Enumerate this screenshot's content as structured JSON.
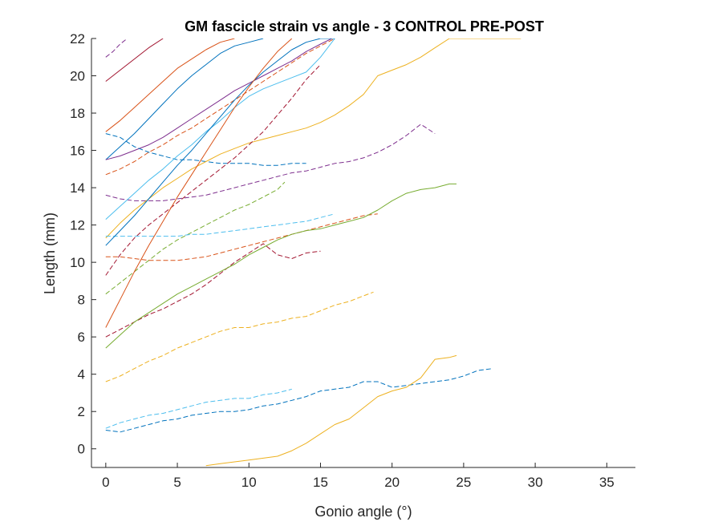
{
  "chart_data": {
    "type": "line",
    "title": "GM fascicle strain vs angle - 3 CONTROL PRE-POST",
    "xlabel": "Gonio angle (°)",
    "ylabel": "Length (mm)",
    "xlim": [
      -1,
      37
    ],
    "ylim": [
      -1,
      22
    ],
    "xticks": [
      0,
      5,
      10,
      15,
      20,
      25,
      30,
      35
    ],
    "yticks": [
      0,
      2,
      4,
      6,
      8,
      10,
      12,
      14,
      16,
      18,
      20,
      22
    ],
    "grid": false,
    "legend": "none",
    "colors": {
      "blue": "#0072BD",
      "orange": "#D95319",
      "yellow": "#EDB120",
      "purple": "#7E2F8E",
      "green": "#77AC30",
      "cyan": "#4DBEEE",
      "maroon": "#A2142F",
      "axis": "#262626"
    },
    "series": [
      {
        "color": "purple",
        "dash": "dash",
        "x": [
          0,
          0.5,
          1,
          1.5
        ],
        "y": [
          21,
          21.3,
          21.7,
          22
        ]
      },
      {
        "color": "maroon",
        "dash": "solid",
        "x": [
          0,
          1,
          2,
          3,
          4
        ],
        "y": [
          19.7,
          20.3,
          20.9,
          21.5,
          22
        ]
      },
      {
        "color": "orange",
        "dash": "solid",
        "x": [
          0,
          1,
          2,
          3,
          4,
          5,
          6,
          7,
          8,
          9
        ],
        "y": [
          17,
          17.6,
          18.3,
          19,
          19.7,
          20.4,
          20.9,
          21.4,
          21.8,
          22
        ]
      },
      {
        "color": "blue",
        "dash": "solid",
        "x": [
          0,
          1,
          2,
          3,
          4,
          5,
          6,
          7,
          8,
          9,
          10,
          11
        ],
        "y": [
          15.5,
          16.2,
          16.9,
          17.7,
          18.5,
          19.3,
          20,
          20.6,
          21.2,
          21.6,
          21.8,
          22
        ]
      },
      {
        "color": "purple",
        "dash": "solid",
        "x": [
          0,
          1,
          2,
          3,
          4,
          5,
          6,
          7,
          8,
          9,
          10,
          11,
          12,
          13,
          14,
          15,
          15.8
        ],
        "y": [
          15.5,
          15.7,
          16,
          16.3,
          16.7,
          17.2,
          17.7,
          18.2,
          18.7,
          19.2,
          19.6,
          20,
          20.4,
          20.8,
          21.3,
          21.7,
          22
        ]
      },
      {
        "color": "blue",
        "dash": "dash",
        "x": [
          0,
          1,
          2,
          3,
          4,
          5,
          6,
          7,
          8,
          9,
          10,
          11,
          12,
          13,
          14
        ],
        "y": [
          16.9,
          16.7,
          16.2,
          15.9,
          15.7,
          15.5,
          15.5,
          15.4,
          15.3,
          15.3,
          15.3,
          15.2,
          15.2,
          15.3,
          15.3
        ]
      },
      {
        "color": "orange",
        "dash": "dash",
        "x": [
          0,
          1,
          2,
          3,
          4,
          5,
          6,
          7,
          8,
          9,
          10,
          11,
          12,
          13,
          14,
          15,
          16
        ],
        "y": [
          14.7,
          15,
          15.4,
          15.9,
          16.3,
          16.8,
          17.2,
          17.7,
          18.2,
          18.7,
          19.2,
          19.7,
          20.2,
          20.7,
          21.2,
          21.6,
          22
        ]
      },
      {
        "color": "purple",
        "dash": "dash",
        "x": [
          0,
          1,
          2,
          3,
          4,
          5,
          6,
          7,
          8,
          9,
          10,
          11,
          12,
          13,
          14,
          15,
          16,
          17,
          18,
          19,
          20,
          21,
          22,
          23
        ],
        "y": [
          13.6,
          13.4,
          13.3,
          13.3,
          13.3,
          13.4,
          13.5,
          13.6,
          13.8,
          14,
          14.2,
          14.4,
          14.6,
          14.8,
          14.9,
          15.1,
          15.3,
          15.4,
          15.6,
          15.9,
          16.3,
          16.8,
          17.4,
          16.9
        ]
      },
      {
        "color": "yellow",
        "dash": "solid",
        "x": [
          0,
          1,
          2,
          3,
          4,
          5,
          6,
          7,
          8,
          9,
          10,
          11,
          12,
          13,
          14,
          15,
          16,
          17,
          18,
          19,
          20,
          21,
          22,
          23,
          24,
          25,
          26,
          27,
          28,
          29
        ],
        "y": [
          11.3,
          12.1,
          12.8,
          13.4,
          14,
          14.5,
          15,
          15.4,
          15.8,
          16.1,
          16.4,
          16.6,
          16.8,
          17,
          17.2,
          17.5,
          17.9,
          18.4,
          19,
          20,
          20.3,
          20.6,
          21,
          21.5,
          22,
          22,
          22,
          22,
          22,
          22
        ]
      },
      {
        "color": "cyan",
        "dash": "solid",
        "x": [
          0,
          1,
          2,
          3,
          4,
          5,
          6,
          7,
          8,
          9,
          10,
          11,
          12,
          13,
          14,
          15,
          16
        ],
        "y": [
          12.3,
          13,
          13.7,
          14.4,
          15,
          15.7,
          16.3,
          17,
          17.6,
          18.3,
          18.9,
          19.3,
          19.6,
          19.9,
          20.2,
          21,
          22
        ]
      },
      {
        "color": "maroon",
        "dash": "dash",
        "x": [
          0,
          1,
          2,
          3,
          4,
          5,
          6,
          7,
          8,
          9,
          10,
          11,
          12,
          13,
          14,
          15
        ],
        "y": [
          9.3,
          10.4,
          11.3,
          12,
          12.6,
          13.2,
          13.8,
          14.4,
          15,
          15.6,
          16.3,
          17,
          17.9,
          18.8,
          19.8,
          20.6
        ]
      },
      {
        "color": "green",
        "dash": "dash",
        "x": [
          0,
          1,
          2,
          3,
          4,
          5,
          6,
          7,
          8,
          9,
          10,
          11,
          12,
          12.5
        ],
        "y": [
          8.3,
          8.9,
          9.5,
          10.1,
          10.7,
          11.2,
          11.6,
          12,
          12.4,
          12.8,
          13.1,
          13.5,
          13.9,
          14.3
        ]
      },
      {
        "color": "cyan",
        "dash": "dash",
        "x": [
          0,
          1,
          2,
          3,
          4,
          5,
          6,
          7,
          8,
          9,
          10,
          11,
          12,
          13,
          14,
          15,
          16
        ],
        "y": [
          11.4,
          11.4,
          11.4,
          11.4,
          11.4,
          11.4,
          11.5,
          11.5,
          11.6,
          11.7,
          11.8,
          11.9,
          12,
          12.1,
          12.2,
          12.4,
          12.6
        ]
      },
      {
        "color": "orange",
        "dash": "dash",
        "x": [
          0,
          1,
          2,
          3,
          4,
          5,
          6,
          7,
          8,
          9,
          10,
          11,
          12,
          13,
          14,
          15,
          16,
          17,
          18,
          19
        ],
        "y": [
          10.3,
          10.3,
          10.2,
          10.1,
          10.1,
          10.1,
          10.2,
          10.3,
          10.5,
          10.7,
          10.9,
          11.1,
          11.3,
          11.5,
          11.7,
          11.9,
          12.1,
          12.3,
          12.5,
          12.6
        ]
      },
      {
        "color": "blue",
        "dash": "solid",
        "x": [
          0,
          1,
          2,
          3,
          4,
          5,
          6,
          7,
          8,
          9,
          10,
          11,
          12,
          13,
          14,
          15,
          16
        ],
        "y": [
          10.9,
          11.7,
          12.5,
          13.4,
          14.3,
          15.2,
          16,
          16.9,
          17.8,
          18.7,
          19.5,
          20.2,
          20.8,
          21.4,
          21.8,
          22,
          22
        ]
      },
      {
        "color": "orange",
        "dash": "solid",
        "x": [
          0,
          1,
          2,
          3,
          4,
          5,
          6,
          7,
          8,
          9,
          10,
          11,
          12,
          13
        ],
        "y": [
          6.5,
          8,
          9.5,
          10.9,
          12.2,
          13.5,
          14.7,
          15.9,
          17.1,
          18.3,
          19.4,
          20.4,
          21.3,
          22
        ]
      },
      {
        "color": "maroon",
        "dash": "dash",
        "x": [
          0,
          1,
          2,
          3,
          4,
          5,
          6,
          7,
          8,
          9,
          10,
          11,
          12,
          13,
          14,
          15
        ],
        "y": [
          6,
          6.4,
          6.8,
          7.2,
          7.5,
          7.9,
          8.3,
          8.8,
          9.4,
          10,
          10.5,
          11,
          10.4,
          10.2,
          10.5,
          10.6
        ]
      },
      {
        "color": "green",
        "dash": "solid",
        "x": [
          0,
          1,
          2,
          3,
          4,
          5,
          6,
          7,
          8,
          9,
          10,
          11,
          12,
          13,
          14,
          15,
          16,
          17,
          18,
          19,
          20,
          21,
          22,
          23,
          24,
          24.5
        ],
        "y": [
          5.4,
          6.1,
          6.8,
          7.3,
          7.8,
          8.3,
          8.7,
          9.1,
          9.5,
          9.9,
          10.4,
          10.8,
          11.2,
          11.5,
          11.7,
          11.8,
          12,
          12.2,
          12.4,
          12.8,
          13.3,
          13.7,
          13.9,
          14,
          14.2,
          14.2
        ]
      },
      {
        "color": "yellow",
        "dash": "dash",
        "x": [
          0,
          1,
          2,
          3,
          4,
          5,
          6,
          7,
          8,
          9,
          10,
          11,
          12,
          13,
          14,
          15,
          16,
          17,
          18,
          18.7
        ],
        "y": [
          3.6,
          3.9,
          4.3,
          4.7,
          5,
          5.4,
          5.7,
          6,
          6.3,
          6.5,
          6.5,
          6.7,
          6.8,
          7,
          7.1,
          7.4,
          7.7,
          7.9,
          8.2,
          8.4
        ]
      },
      {
        "color": "cyan",
        "dash": "dash",
        "x": [
          0,
          1,
          2,
          3,
          4,
          5,
          6,
          7,
          8,
          9,
          10,
          11,
          12,
          13
        ],
        "y": [
          1.1,
          1.4,
          1.6,
          1.8,
          1.9,
          2.1,
          2.3,
          2.5,
          2.6,
          2.7,
          2.7,
          2.9,
          3,
          3.2
        ]
      },
      {
        "color": "blue",
        "dash": "dash",
        "x": [
          0,
          1,
          2,
          3,
          4,
          5,
          6,
          7,
          8,
          9,
          10,
          11,
          12,
          13,
          14,
          15,
          16,
          17,
          18,
          19,
          20,
          21,
          22,
          23,
          24,
          25,
          26,
          27
        ],
        "y": [
          1,
          0.9,
          1.1,
          1.3,
          1.5,
          1.6,
          1.8,
          1.9,
          2,
          2,
          2.1,
          2.3,
          2.4,
          2.6,
          2.8,
          3.1,
          3.2,
          3.3,
          3.6,
          3.6,
          3.3,
          3.4,
          3.5,
          3.6,
          3.7,
          3.9,
          4.2,
          4.3
        ]
      },
      {
        "color": "yellow",
        "dash": "solid",
        "x": [
          7,
          8,
          9,
          10,
          11,
          12,
          13,
          14,
          15,
          16,
          17,
          18,
          19,
          20,
          21,
          22,
          23,
          24,
          24.5
        ],
        "y": [
          -0.9,
          -0.8,
          -0.7,
          -0.6,
          -0.5,
          -0.4,
          -0.1,
          0.3,
          0.8,
          1.3,
          1.6,
          2.2,
          2.8,
          3.1,
          3.3,
          3.8,
          4.8,
          4.9,
          5
        ]
      }
    ]
  }
}
